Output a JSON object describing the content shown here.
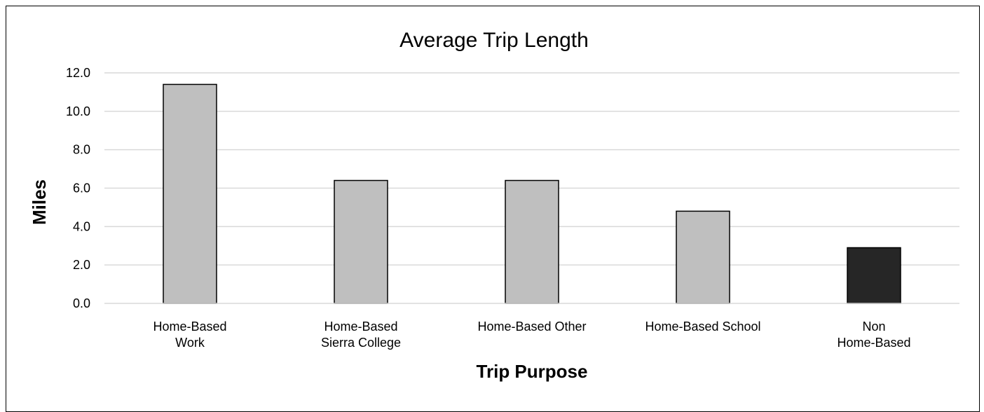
{
  "chart_data": {
    "type": "bar",
    "title": "Average Trip Length",
    "xlabel": "Trip Purpose",
    "ylabel": "Miles",
    "categories": [
      [
        "Home-Based",
        "Work"
      ],
      [
        "Home-Based",
        "Sierra College"
      ],
      [
        "Home-Based Other"
      ],
      [
        "Home-Based School"
      ],
      [
        "Non",
        "Home-Based"
      ]
    ],
    "values": [
      11.4,
      6.4,
      6.4,
      4.8,
      2.9
    ],
    "y_ticks": [
      "0.0",
      "2.0",
      "4.0",
      "6.0",
      "8.0",
      "10.0",
      "12.0"
    ],
    "ylim": [
      0,
      12
    ],
    "grid": true,
    "legend": "none",
    "colors": {
      "bar_fill": "#bfbfbf",
      "highlight_fill": "#262626",
      "bar_stroke": "#000000",
      "gridline": "#d9d9d9"
    },
    "highlight_index": 4
  }
}
